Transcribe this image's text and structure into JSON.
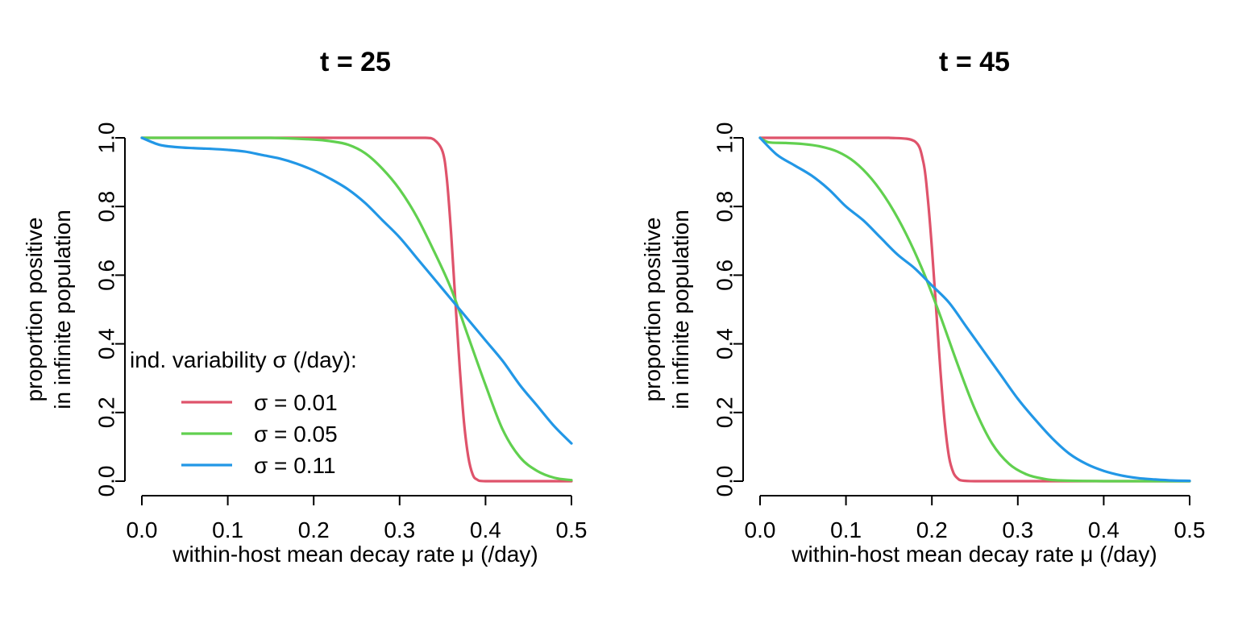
{
  "chart_data": [
    {
      "type": "line",
      "title": "t = 25",
      "xlabel": "within-host mean decay rate μ (/day)",
      "ylabel": [
        "proportion positive",
        "in infinite population"
      ],
      "xlim": [
        0,
        0.5
      ],
      "ylim": [
        0,
        1
      ],
      "xticks": [
        "0.0",
        "0.1",
        "0.2",
        "0.3",
        "0.4",
        "0.5"
      ],
      "yticks": [
        "0.0",
        "0.2",
        "0.4",
        "0.6",
        "0.8",
        "1.0"
      ],
      "legend": {
        "title": "ind. variability σ (/day):",
        "placement": "bottom-left",
        "entries": [
          "σ = 0.01",
          "σ = 0.05",
          "σ = 0.11"
        ]
      },
      "series": [
        {
          "name": "σ = 0.01",
          "color": "#DF536B",
          "x": [
            0,
            0.05,
            0.1,
            0.15,
            0.2,
            0.25,
            0.3,
            0.33,
            0.34,
            0.35,
            0.355,
            0.36,
            0.365,
            0.37,
            0.375,
            0.38,
            0.385,
            0.39,
            0.4,
            0.45,
            0.5
          ],
          "y": [
            1,
            1,
            1,
            1,
            1,
            1,
            1,
            1,
            0.995,
            0.96,
            0.88,
            0.72,
            0.52,
            0.33,
            0.17,
            0.07,
            0.02,
            0.005,
            0,
            0,
            0
          ]
        },
        {
          "name": "σ = 0.05",
          "color": "#61D04F",
          "x": [
            0,
            0.05,
            0.1,
            0.15,
            0.2,
            0.22,
            0.24,
            0.26,
            0.28,
            0.3,
            0.32,
            0.34,
            0.36,
            0.38,
            0.4,
            0.42,
            0.44,
            0.46,
            0.48,
            0.5
          ],
          "y": [
            1,
            1,
            1,
            1,
            0.995,
            0.99,
            0.98,
            0.955,
            0.91,
            0.85,
            0.77,
            0.67,
            0.56,
            0.42,
            0.28,
            0.15,
            0.07,
            0.03,
            0.01,
            0.003
          ]
        },
        {
          "name": "σ = 0.11",
          "color": "#2297E6",
          "x": [
            0,
            0.02,
            0.04,
            0.06,
            0.08,
            0.1,
            0.12,
            0.14,
            0.16,
            0.18,
            0.2,
            0.22,
            0.24,
            0.26,
            0.28,
            0.3,
            0.32,
            0.34,
            0.36,
            0.38,
            0.4,
            0.42,
            0.44,
            0.46,
            0.48,
            0.5
          ],
          "y": [
            1,
            0.98,
            0.973,
            0.97,
            0.968,
            0.965,
            0.96,
            0.95,
            0.94,
            0.925,
            0.905,
            0.88,
            0.85,
            0.81,
            0.76,
            0.71,
            0.65,
            0.59,
            0.53,
            0.47,
            0.41,
            0.35,
            0.28,
            0.22,
            0.16,
            0.11
          ]
        }
      ]
    },
    {
      "type": "line",
      "title": "t = 45",
      "xlabel": "within-host mean decay rate μ (/day)",
      "ylabel": [
        "proportion positive",
        "in infinite population"
      ],
      "xlim": [
        0,
        0.5
      ],
      "ylim": [
        0,
        1
      ],
      "xticks": [
        "0.0",
        "0.1",
        "0.2",
        "0.3",
        "0.4",
        "0.5"
      ],
      "yticks": [
        "0.0",
        "0.2",
        "0.4",
        "0.6",
        "0.8",
        "1.0"
      ],
      "series": [
        {
          "name": "σ = 0.01",
          "color": "#DF536B",
          "x": [
            0,
            0.05,
            0.1,
            0.15,
            0.18,
            0.19,
            0.195,
            0.2,
            0.205,
            0.21,
            0.215,
            0.22,
            0.225,
            0.23,
            0.235,
            0.25,
            0.3,
            0.4,
            0.5
          ],
          "y": [
            1,
            1,
            1,
            1,
            0.99,
            0.93,
            0.83,
            0.68,
            0.5,
            0.32,
            0.17,
            0.07,
            0.025,
            0.008,
            0.002,
            0,
            0,
            0,
            0
          ]
        },
        {
          "name": "σ = 0.05",
          "color": "#61D04F",
          "x": [
            0,
            0.01,
            0.03,
            0.05,
            0.07,
            0.09,
            0.11,
            0.13,
            0.15,
            0.17,
            0.19,
            0.21,
            0.23,
            0.25,
            0.27,
            0.29,
            0.31,
            0.33,
            0.35,
            0.4,
            0.45,
            0.5
          ],
          "y": [
            1,
            0.987,
            0.985,
            0.982,
            0.975,
            0.96,
            0.93,
            0.88,
            0.81,
            0.72,
            0.61,
            0.48,
            0.34,
            0.21,
            0.11,
            0.05,
            0.02,
            0.007,
            0.002,
            0,
            0,
            0
          ]
        },
        {
          "name": "σ = 0.11",
          "color": "#2297E6",
          "x": [
            0,
            0.02,
            0.04,
            0.06,
            0.08,
            0.1,
            0.12,
            0.14,
            0.16,
            0.18,
            0.2,
            0.22,
            0.24,
            0.26,
            0.28,
            0.3,
            0.32,
            0.34,
            0.36,
            0.38,
            0.4,
            0.42,
            0.44,
            0.46,
            0.48,
            0.5
          ],
          "y": [
            1,
            0.95,
            0.92,
            0.89,
            0.85,
            0.8,
            0.76,
            0.71,
            0.66,
            0.62,
            0.57,
            0.52,
            0.45,
            0.38,
            0.31,
            0.24,
            0.18,
            0.125,
            0.08,
            0.05,
            0.03,
            0.017,
            0.009,
            0.005,
            0.002,
            0.001
          ]
        }
      ]
    }
  ]
}
